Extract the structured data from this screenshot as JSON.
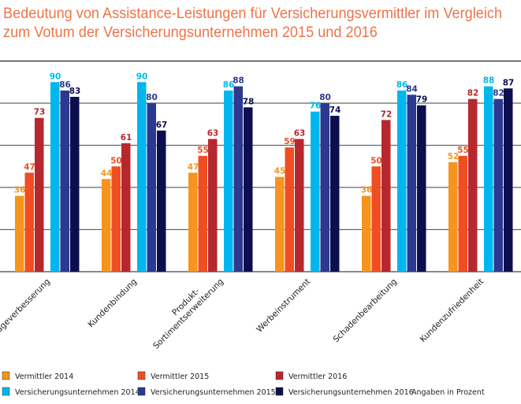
{
  "chart_data": {
    "type": "bar",
    "title": "Bedeutung von Assistance-Leistungen für Versicherungsvermittler im Vergleich zum Votum der Versicherungsunternehmen 2015 und 2016",
    "title_lines": [
      "Bedeutung von Assistance-Leistungen für Versicherungsvermittler im Vergleich",
      "zum Votum der Versicherungsunternehmen 2015 und 2016"
    ],
    "categories": [
      "Imageverbesserung",
      "Kundenbindung",
      "Produkt-\nSortimentserweiterung",
      "Werbeinstrument",
      "Schadenbearbeitung",
      "Kundenzufriedenheit"
    ],
    "series": [
      {
        "name": "Vermittler 2014",
        "color": "#f7941d",
        "values": [
          36,
          44,
          47,
          45,
          36,
          52
        ]
      },
      {
        "name": "Vermittler 2015",
        "color": "#ef4e23",
        "values": [
          47,
          50,
          55,
          59,
          50,
          55
        ]
      },
      {
        "name": "Vermittler 2016",
        "color": "#b7282e",
        "values": [
          73,
          61,
          63,
          63,
          72,
          82
        ]
      },
      {
        "name": "Versicherungsunternehmen 2014",
        "color": "#00b6ef",
        "values": [
          90,
          90,
          86,
          76,
          86,
          88
        ]
      },
      {
        "name": "Versicherungsunternehmen 2015",
        "color": "#2b3990",
        "values": [
          86,
          80,
          88,
          80,
          84,
          82
        ]
      },
      {
        "name": "Versicherungsunternehmen 2016",
        "color": "#0c0f4d",
        "values": [
          83,
          67,
          78,
          74,
          79,
          87
        ]
      }
    ],
    "ylim": [
      0,
      100
    ],
    "grid": true,
    "gridlines": [
      20,
      40,
      60,
      80,
      100
    ],
    "legend": "bottom",
    "note": "Angaben in Prozent",
    "xlabel": "",
    "ylabel": ""
  }
}
